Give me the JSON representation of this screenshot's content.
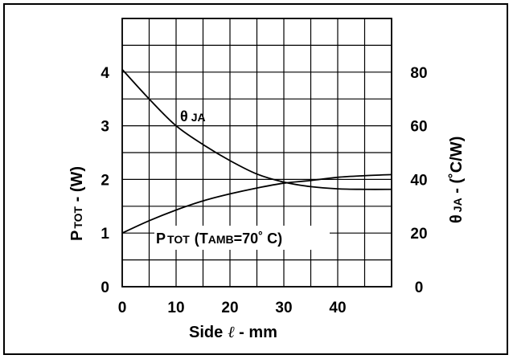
{
  "chart_data": {
    "type": "line",
    "x": [
      0,
      5,
      10,
      15,
      20,
      25,
      30,
      35,
      40,
      45,
      50
    ],
    "xlim": [
      0,
      50
    ],
    "x_ticks": [
      "0",
      "10",
      "20",
      "30",
      "40"
    ],
    "xlabel": {
      "main": "Side",
      "symbol": "ℓ",
      "rest": " -  mm"
    },
    "ylim_left": [
      0,
      5
    ],
    "left_ticks": [
      "0",
      "1",
      "2",
      "3",
      "4"
    ],
    "ylabel_left": {
      "main": "P",
      "sub": "TOT",
      "rest": " -  (W)"
    },
    "ylim_right": [
      0,
      100
    ],
    "right_ticks": [
      "0",
      "20",
      "40",
      "60",
      "80"
    ],
    "ylabel_right": {
      "main": "θ",
      "sub": "JA",
      "rest": "  -  (˚C/W)"
    },
    "grid": true,
    "series": [
      {
        "axis": "right",
        "label": {
          "main": "θ",
          "sub": "JA"
        },
        "values": [
          81,
          70,
          60,
          53,
          47,
          42,
          39,
          37.3,
          36.5,
          36.3,
          36.3
        ]
      },
      {
        "axis": "left",
        "label": {
          "main": "P",
          "sub": "TOT",
          "mid": "(T",
          "sub2": "AMB",
          "rest": "=70˚ C)"
        },
        "values": [
          1.0,
          1.23,
          1.43,
          1.6,
          1.73,
          1.84,
          1.93,
          1.98,
          2.04,
          2.07,
          2.09
        ]
      }
    ]
  }
}
